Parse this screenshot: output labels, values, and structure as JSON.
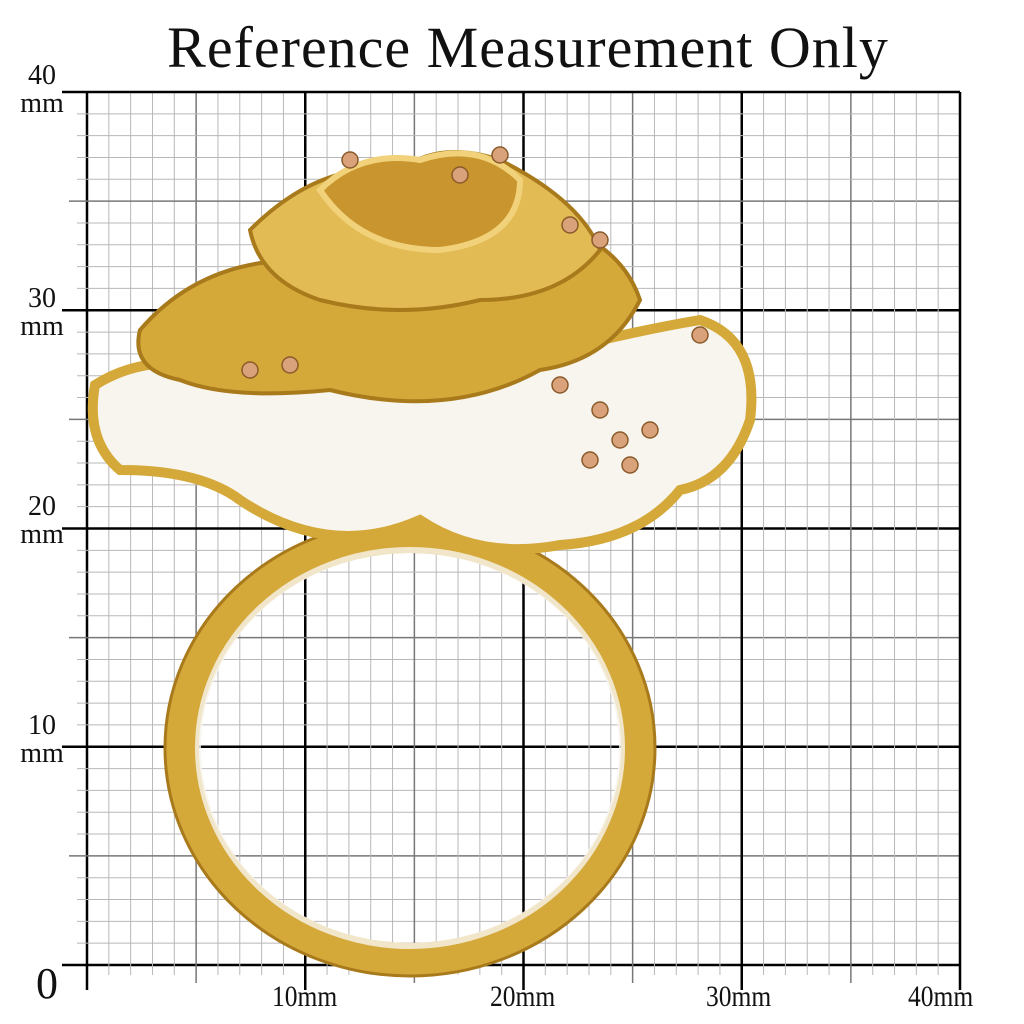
{
  "title": "Reference Measurement Only",
  "y_labels": [
    {
      "value": "40",
      "unit": "mm"
    },
    {
      "value": "30",
      "unit": "mm"
    },
    {
      "value": "20",
      "unit": "mm"
    },
    {
      "value": "10",
      "unit": "mm"
    }
  ],
  "origin_label": "0",
  "x_labels": [
    "10mm",
    "20mm",
    "30mm",
    "40mm"
  ],
  "grid": {
    "range_mm": [
      0,
      40
    ],
    "minor_step_mm": 1,
    "mid_step_mm": 5,
    "major_step_mm": 10
  },
  "subject": "gold rose ring with white enamel petals",
  "colors": {
    "gold": "#d4a93a",
    "gold_dark": "#a87a1c",
    "enamel": "#f8f5ee",
    "grid_minor": "#b8b8b8",
    "grid_major": "#000000"
  }
}
